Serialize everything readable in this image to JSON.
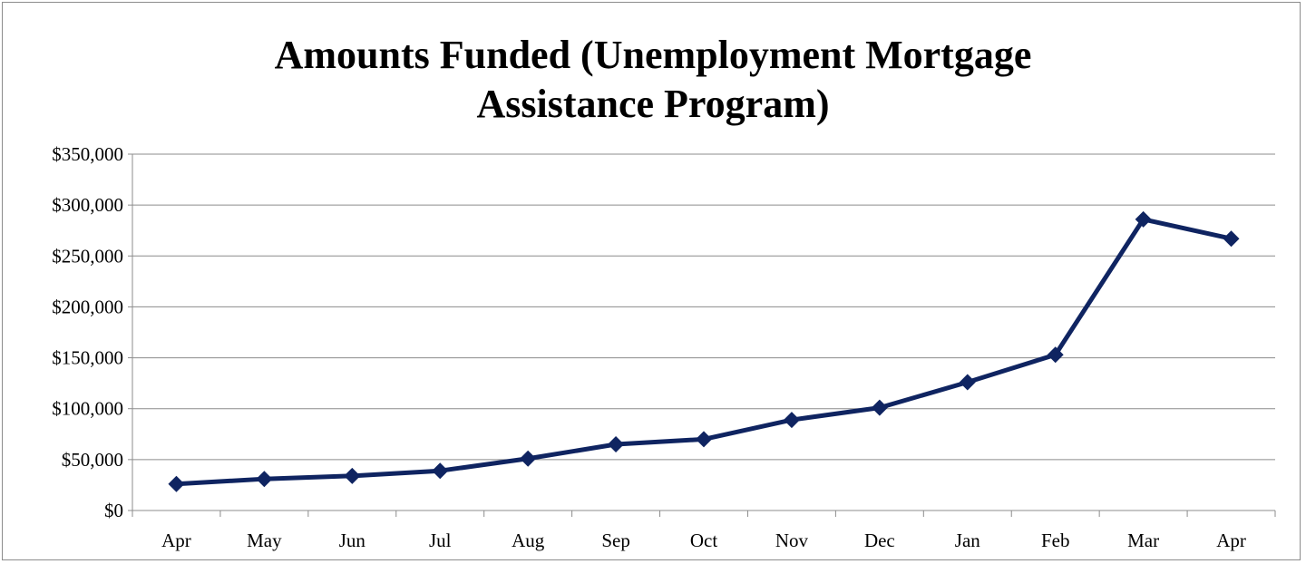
{
  "chart_data": {
    "type": "line",
    "title_lines": [
      "Amounts Funded (Unemployment Mortgage",
      "Assistance Program)"
    ],
    "xlabel": "",
    "ylabel": "",
    "categories": [
      "Apr",
      "May",
      "Jun",
      "Jul",
      "Aug",
      "Sep",
      "Oct",
      "Nov",
      "Dec",
      "Jan",
      "Feb",
      "Mar",
      "Apr"
    ],
    "series": [
      {
        "values": [
          26000,
          31000,
          34000,
          39000,
          51000,
          65000,
          70000,
          89000,
          101000,
          126000,
          153000,
          286000,
          267000
        ]
      }
    ],
    "ylim": [
      0,
      350000
    ],
    "y_ticks": [
      0,
      50000,
      100000,
      150000,
      200000,
      250000,
      300000,
      350000
    ],
    "y_tick_labels": [
      "$0",
      "$50,000",
      "$100,000",
      "$150,000",
      "$200,000",
      "$250,000",
      "$300,000",
      "$350,000"
    ],
    "grid": true,
    "legend": "none",
    "colors": {
      "line": "#0f2461",
      "marker": "#0f2461",
      "grid": "#8c8c8c",
      "axis": "#8c8c8c"
    }
  }
}
